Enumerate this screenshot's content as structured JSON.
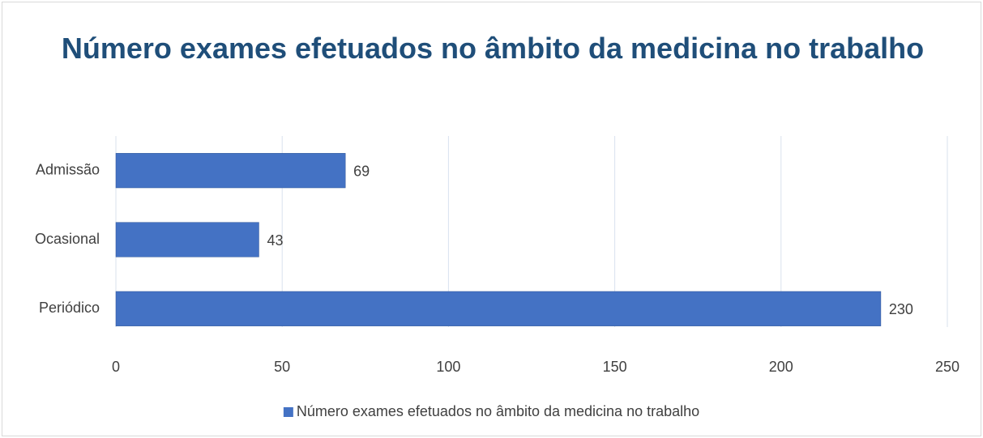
{
  "chart_data": {
    "type": "barh",
    "title": "Número exames efetuados no âmbito da medicina no trabalho",
    "categories": [
      "Admissão",
      "Ocasional",
      "Periódico"
    ],
    "series": [
      {
        "name": "Número exames efetuados no âmbito da medicina no trabalho",
        "color": "#4472c4",
        "values": [
          69,
          43,
          230
        ]
      }
    ],
    "xlim": [
      0,
      250
    ],
    "xticks": [
      0,
      50,
      100,
      150,
      200,
      250
    ],
    "grid": true,
    "legend": "bottom",
    "data_labels": true
  }
}
